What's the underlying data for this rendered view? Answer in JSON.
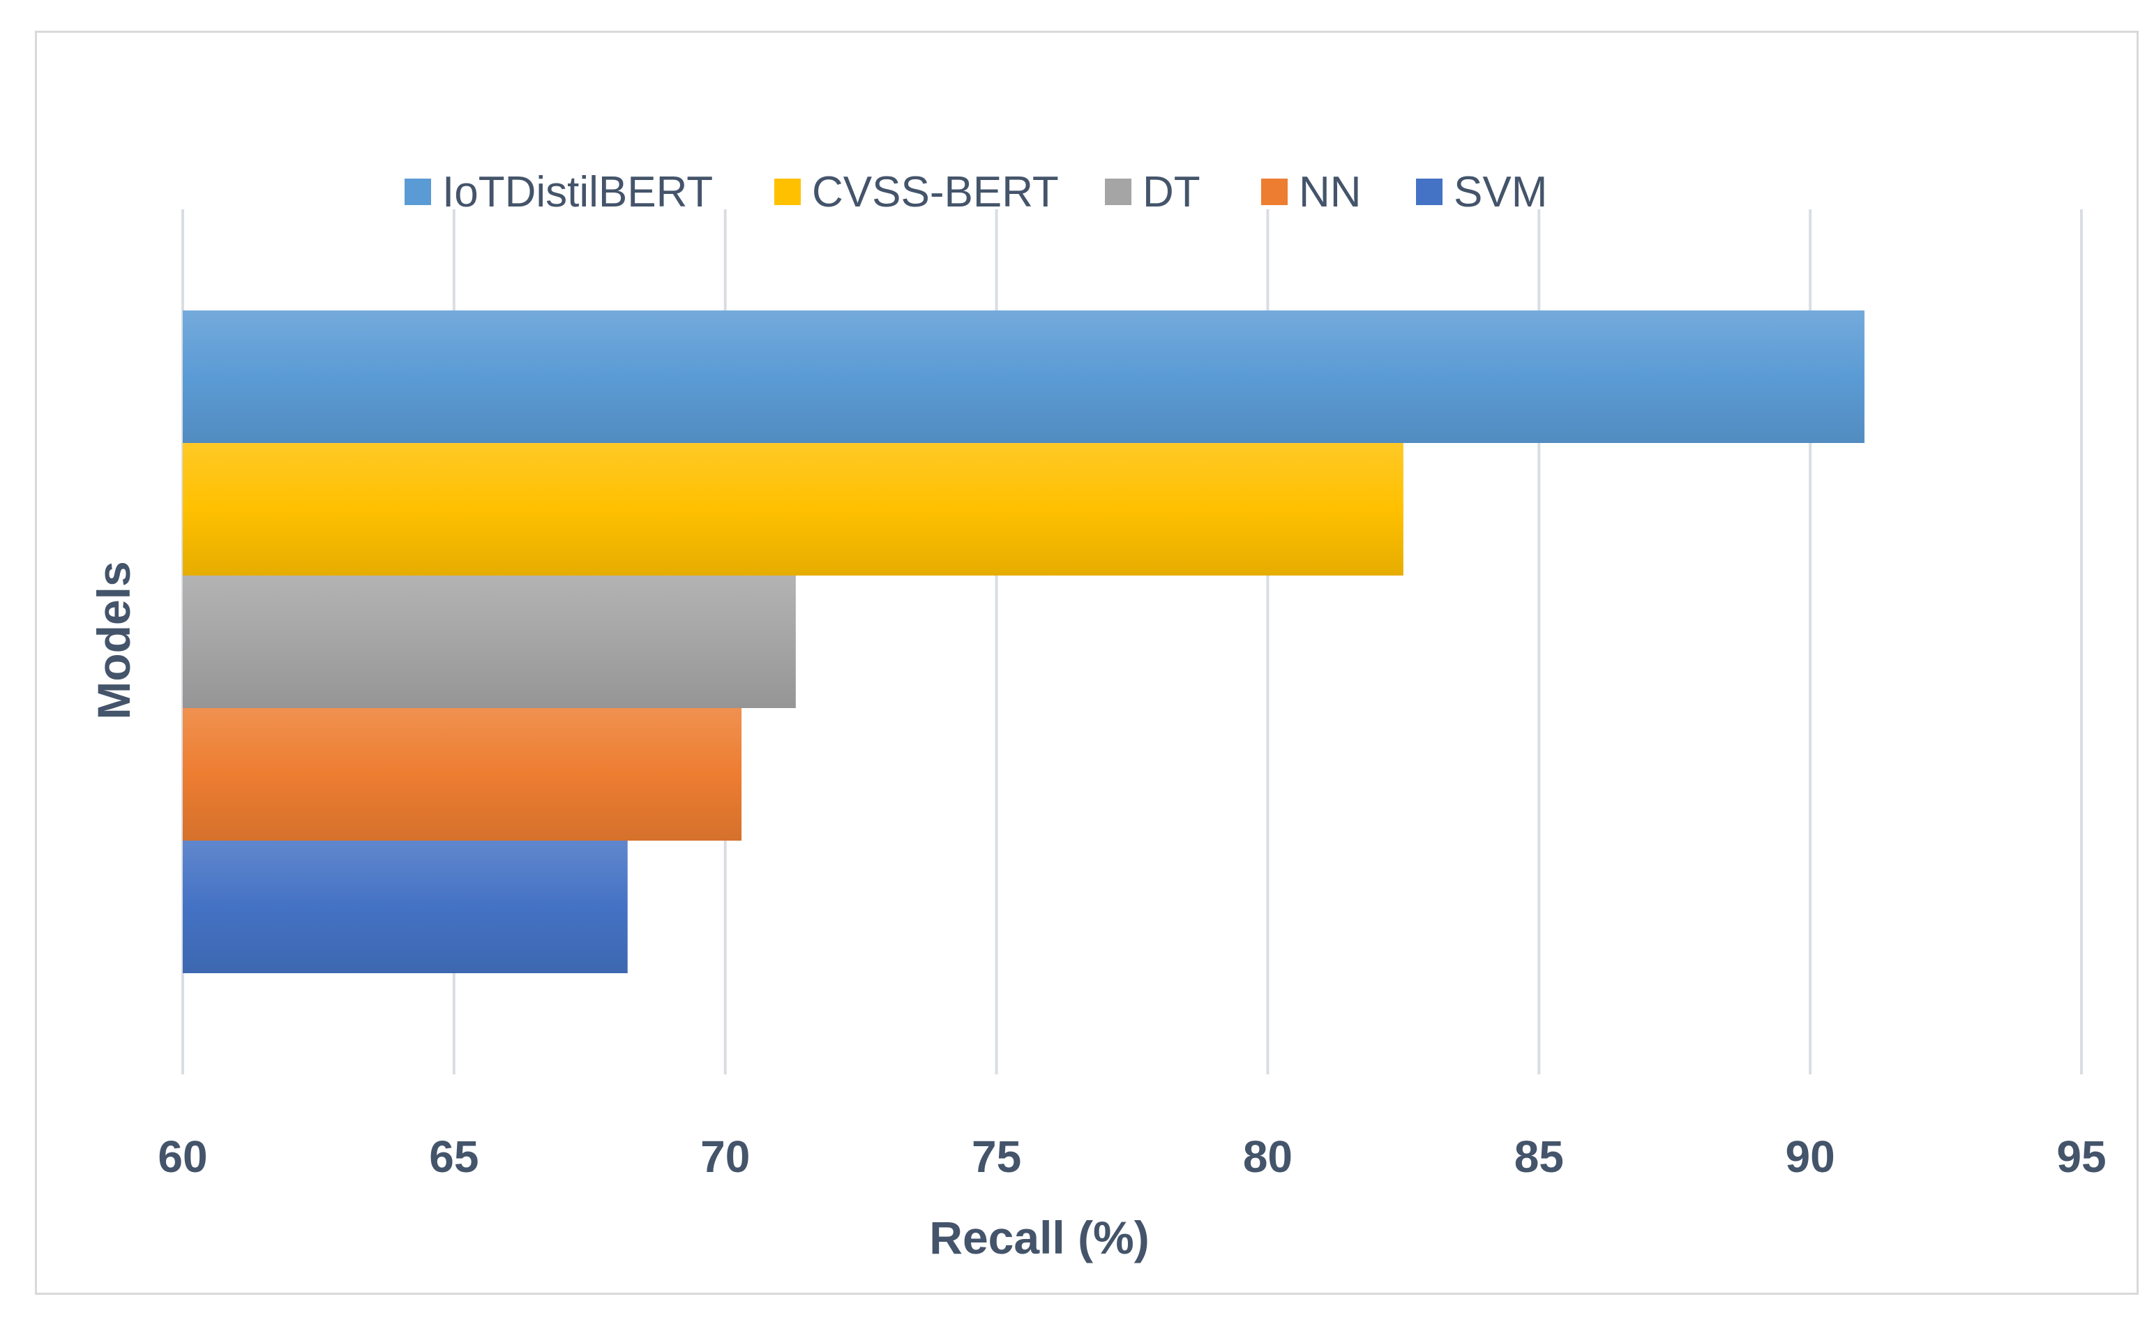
{
  "chart_data": {
    "type": "bar",
    "orientation": "horizontal",
    "xlabel": "Recall (%)",
    "ylabel": "Models",
    "xlim": [
      60,
      95
    ],
    "x_ticks": [
      "60",
      "65",
      "70",
      "75",
      "80",
      "85",
      "90",
      "95"
    ],
    "grid": true,
    "legend_position": "top",
    "series": [
      {
        "name": "IoTDistilBERT",
        "value": 91.0,
        "color": "#5b9bd5"
      },
      {
        "name": "CVSS-BERT",
        "value": 82.5,
        "color": "#ffc000"
      },
      {
        "name": "DT",
        "value": 71.3,
        "color": "#a5a5a5"
      },
      {
        "name": "NN",
        "value": 70.3,
        "color": "#ed7d31"
      },
      {
        "name": "SVM",
        "value": 68.2,
        "color": "#4472c4"
      }
    ]
  }
}
